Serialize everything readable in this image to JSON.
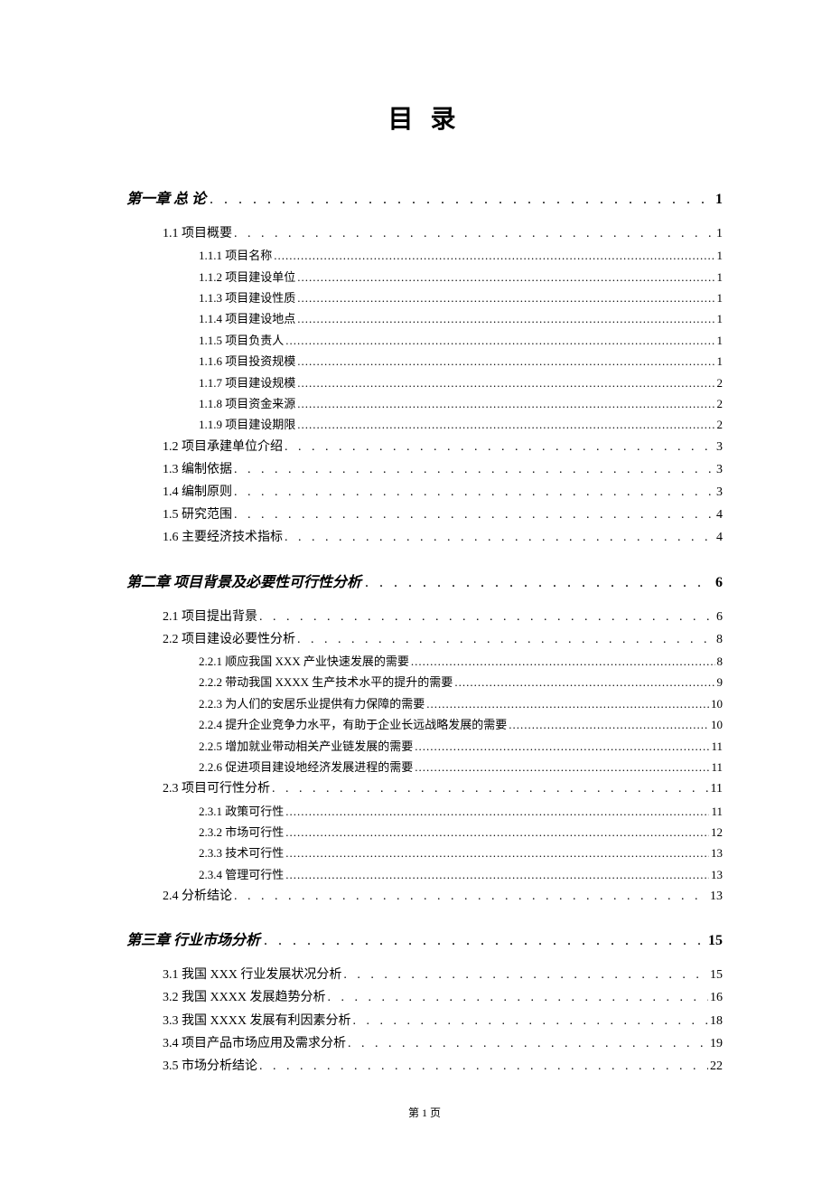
{
  "title": "目 录",
  "footer": "第 1 页",
  "leader_big": ". . . . . . . . . . . . . . . . . . . . . . . . . . . . . . . . . . . . . . . . . . . . . . . . . . . . . . . . . . . . . . . . . . . . . . . . . . . . . . . .",
  "leader_mid": ". . . . . . . . . . . . . . . . . . . . . . . . . . . . . . . . . . . . . . . . . . . . . . . . . . . . . . . . . . . . . . . . . . . . . . . . . . . . . . . .",
  "leader_small": "...................................................................................................................................................",
  "chapters": [
    {
      "label": "第一章 总 论",
      "page": "1",
      "sections": [
        {
          "label": "1.1 项目概要",
          "page": "1",
          "subs": [
            {
              "label": "1.1.1 项目名称",
              "page": "1"
            },
            {
              "label": "1.1.2 项目建设单位",
              "page": "1"
            },
            {
              "label": "1.1.3 项目建设性质",
              "page": "1"
            },
            {
              "label": "1.1.4 项目建设地点",
              "page": "1"
            },
            {
              "label": "1.1.5 项目负责人",
              "page": "1"
            },
            {
              "label": "1.1.6 项目投资规模",
              "page": "1"
            },
            {
              "label": "1.1.7 项目建设规模",
              "page": "2"
            },
            {
              "label": "1.1.8 项目资金来源",
              "page": "2"
            },
            {
              "label": "1.1.9 项目建设期限",
              "page": "2"
            }
          ]
        },
        {
          "label": "1.2 项目承建单位介绍",
          "page": "3",
          "subs": []
        },
        {
          "label": "1.3 编制依据",
          "page": "3",
          "subs": []
        },
        {
          "label": "1.4 编制原则",
          "page": "3",
          "subs": []
        },
        {
          "label": "1.5 研究范围",
          "page": "4",
          "subs": []
        },
        {
          "label": "1.6 主要经济技术指标",
          "page": "4",
          "subs": []
        }
      ]
    },
    {
      "label": "第二章 项目背景及必要性可行性分析",
      "page": "6",
      "sections": [
        {
          "label": "2.1 项目提出背景",
          "page": "6",
          "subs": []
        },
        {
          "label": "2.2 项目建设必要性分析",
          "page": "8",
          "subs": [
            {
              "label": "2.2.1 顺应我国 XXX 产业快速发展的需要",
              "page": "8"
            },
            {
              "label": "2.2.2 带动我国 XXXX 生产技术水平的提升的需要",
              "page": "9"
            },
            {
              "label": "2.2.3 为人们的安居乐业提供有力保障的需要",
              "page": "10"
            },
            {
              "label": "2.2.4 提升企业竞争力水平，有助于企业长远战略发展的需要",
              "page": "10"
            },
            {
              "label": "2.2.5 增加就业带动相关产业链发展的需要",
              "page": "11"
            },
            {
              "label": "2.2.6 促进项目建设地经济发展进程的需要",
              "page": "11"
            }
          ]
        },
        {
          "label": "2.3 项目可行性分析",
          "page": "11",
          "subs": [
            {
              "label": "2.3.1 政策可行性",
              "page": "11"
            },
            {
              "label": "2.3.2 市场可行性",
              "page": "12"
            },
            {
              "label": "2.3.3 技术可行性",
              "page": "13"
            },
            {
              "label": "2.3.4 管理可行性",
              "page": "13"
            }
          ]
        },
        {
          "label": "2.4 分析结论",
          "page": "13",
          "subs": []
        }
      ]
    },
    {
      "label": "第三章 行业市场分析",
      "page": "15",
      "sections": [
        {
          "label": "3.1 我国 XXX 行业发展状况分析",
          "page": "15",
          "subs": []
        },
        {
          "label": "3.2 我国 XXXX 发展趋势分析 ",
          "page": "16",
          "subs": []
        },
        {
          "label": "3.3 我国 XXXX 发展有利因素分析",
          "page": "18",
          "subs": []
        },
        {
          "label": "3.4 项目产品市场应用及需求分析",
          "page": "19",
          "subs": []
        },
        {
          "label": "3.5 市场分析结论",
          "page": "22",
          "subs": []
        }
      ]
    }
  ]
}
